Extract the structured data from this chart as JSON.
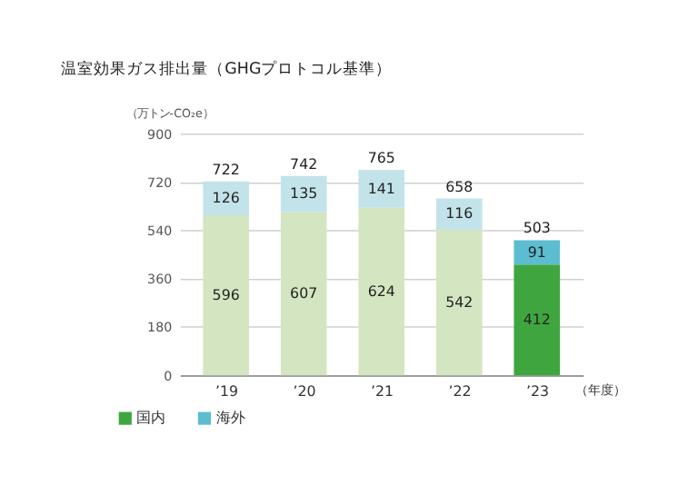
{
  "chart_data": {
    "type": "bar",
    "title": "温室効果ガス排出量（GHGプロトコル基準）",
    "ylabel": "（万トン-CO₂e）",
    "xlabel": "（年度）",
    "categories": [
      "’19",
      "’20",
      "’21",
      "’22",
      "’23"
    ],
    "stacked": true,
    "series": [
      {
        "name": "国内",
        "color": "#3fa63f",
        "colors": [
          "#d4e6c1",
          "#d4e6c1",
          "#d4e6c1",
          "#d4e6c1",
          "#3fa63f"
        ],
        "values": [
          596,
          607,
          624,
          542,
          412
        ]
      },
      {
        "name": "海外",
        "color": "#5cbdd0",
        "colors": [
          "#c3e3ea",
          "#c3e3ea",
          "#c3e3ea",
          "#c3e3ea",
          "#5cbdd0"
        ],
        "values": [
          126,
          135,
          141,
          116,
          91
        ]
      }
    ],
    "totals": [
      "722",
      "742",
      "765",
      "658",
      "503"
    ],
    "data_labels": true,
    "ylim": [
      0,
      900
    ],
    "yticks": [
      0,
      180,
      360,
      540,
      720,
      900
    ],
    "grid": "y",
    "legend": "bottom left"
  }
}
